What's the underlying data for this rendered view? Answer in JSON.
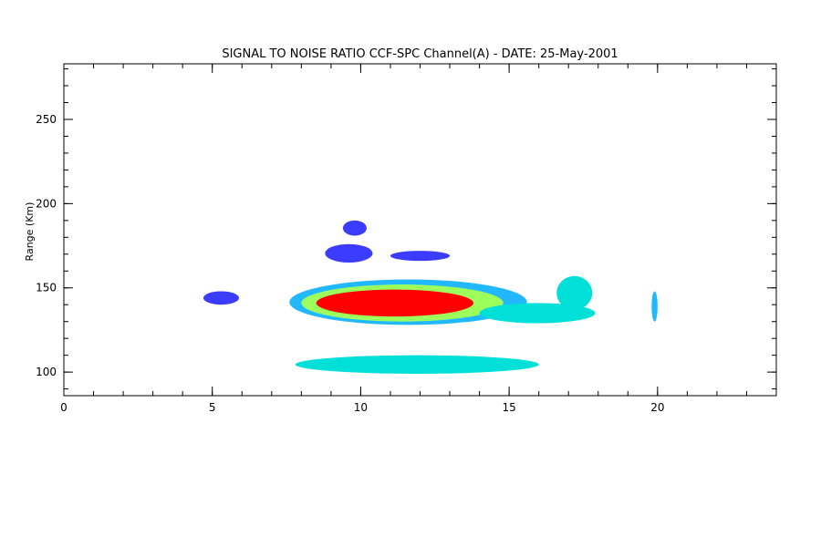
{
  "chart_data": {
    "type": "heatmap",
    "title": "SIGNAL TO NOISE RATIO CCF-SPC Channel(A) - DATE: 25-May-2001",
    "xlabel": "",
    "ylabel": "Range (Km)",
    "xlim": [
      0,
      24
    ],
    "ylim": [
      86,
      283
    ],
    "x_ticks": [
      {
        "value": 0,
        "label": "0"
      },
      {
        "value": 5,
        "label": "5"
      },
      {
        "value": 10,
        "label": "10"
      },
      {
        "value": 15,
        "label": "15"
      },
      {
        "value": 20,
        "label": "20"
      }
    ],
    "y_ticks": [
      {
        "value": 100,
        "label": "100"
      },
      {
        "value": 150,
        "label": "150"
      },
      {
        "value": 200,
        "label": "200"
      },
      {
        "value": 250,
        "label": "250"
      }
    ],
    "x_minor_step": 1,
    "y_minor_step": 10,
    "grid": false,
    "colormap": [
      "#3c3cff",
      "#22b8ff",
      "#00e0d8",
      "#9cff5c",
      "#ffe000",
      "#ff7000",
      "#ff0000"
    ],
    "echo_regions": [
      {
        "name": "main-echo-outer",
        "x": [
          7.6,
          15.6
        ],
        "y": [
          128,
          155
        ],
        "level": 1
      },
      {
        "name": "main-echo-mid",
        "x": [
          8.0,
          14.8
        ],
        "y": [
          130,
          152
        ],
        "level": 3
      },
      {
        "name": "main-echo-core",
        "x": [
          8.5,
          13.8
        ],
        "y": [
          133,
          149
        ],
        "level": 6
      },
      {
        "name": "tail-echo",
        "x": [
          14.0,
          17.9
        ],
        "y": [
          129,
          141
        ],
        "level": 2
      },
      {
        "name": "tail-lobe",
        "x": [
          16.6,
          17.8
        ],
        "y": [
          137,
          157
        ],
        "level": 2
      },
      {
        "name": "lower-layer",
        "x": [
          7.8,
          16.0
        ],
        "y": [
          99,
          110
        ],
        "level": 2
      },
      {
        "name": "upper-blob-1",
        "x": [
          9.4,
          10.2
        ],
        "y": [
          181,
          190
        ],
        "level": 0
      },
      {
        "name": "upper-blob-2",
        "x": [
          8.8,
          10.4
        ],
        "y": [
          165,
          176
        ],
        "level": 0
      },
      {
        "name": "upper-patch-3",
        "x": [
          11.0,
          13.0
        ],
        "y": [
          166,
          172
        ],
        "level": 0
      },
      {
        "name": "left-band",
        "x": [
          4.7,
          5.9
        ],
        "y": [
          140,
          148
        ],
        "level": 0
      },
      {
        "name": "right-edge-echo",
        "x": [
          19.8,
          20.0
        ],
        "y": [
          130,
          148
        ],
        "level": 1
      }
    ]
  }
}
